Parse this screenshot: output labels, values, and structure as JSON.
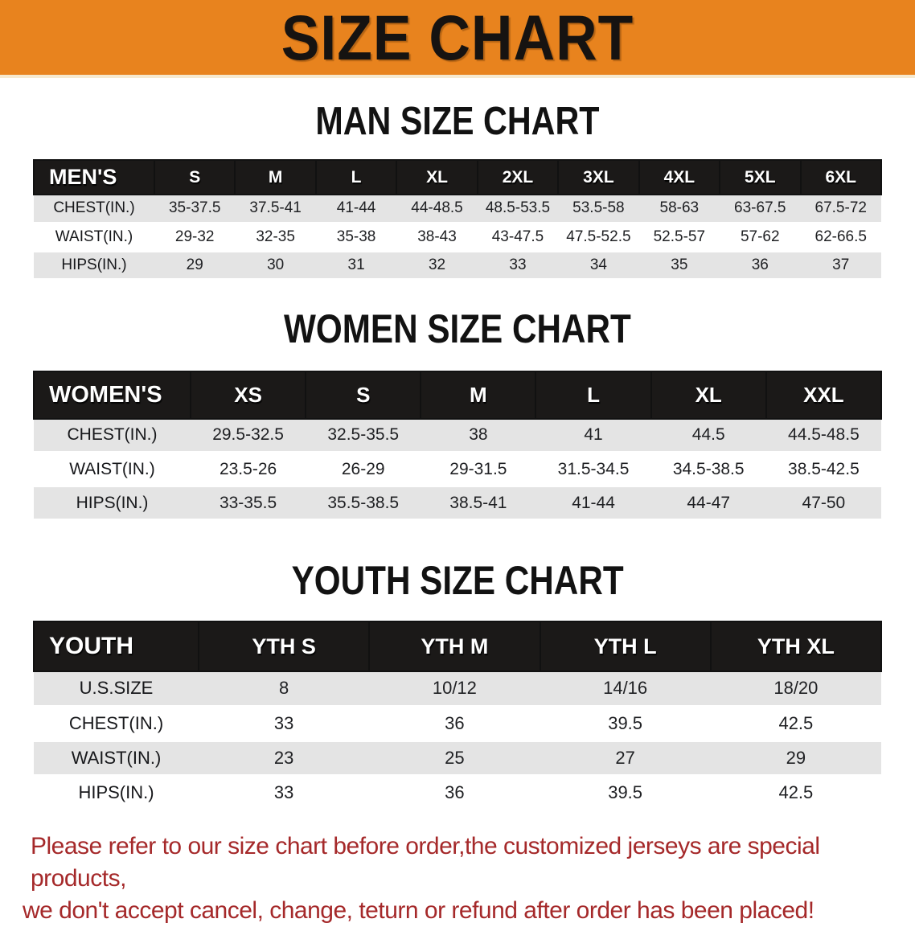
{
  "banner": {
    "title": "SIZE CHART",
    "bg_color": "#e8831e",
    "text_color": "#161311"
  },
  "sections": [
    {
      "heading": "MAN SIZE CHART",
      "table": {
        "header_label": "MEN'S",
        "columns": [
          "S",
          "M",
          "L",
          "XL",
          "2XL",
          "3XL",
          "4XL",
          "5XL",
          "6XL"
        ],
        "rows": [
          {
            "label": "CHEST(IN.)",
            "values": [
              "35-37.5",
              "37.5-41",
              "41-44",
              "44-48.5",
              "48.5-53.5",
              "53.5-58",
              "58-63",
              "63-67.5",
              "67.5-72"
            ]
          },
          {
            "label": "WAIST(IN.)",
            "values": [
              "29-32",
              "32-35",
              "35-38",
              "38-43",
              "43-47.5",
              "47.5-52.5",
              "52.5-57",
              "57-62",
              "62-66.5"
            ]
          },
          {
            "label": "HIPS(IN.)",
            "values": [
              "29",
              "30",
              "31",
              "32",
              "33",
              "34",
              "35",
              "36",
              "37"
            ]
          }
        ]
      }
    },
    {
      "heading": "WOMEN SIZE CHART",
      "table": {
        "header_label": "WOMEN'S",
        "columns": [
          "XS",
          "S",
          "M",
          "L",
          "XL",
          "XXL"
        ],
        "rows": [
          {
            "label": "CHEST(IN.)",
            "values": [
              "29.5-32.5",
              "32.5-35.5",
              "38",
              "41",
              "44.5",
              "44.5-48.5"
            ]
          },
          {
            "label": "WAIST(IN.)",
            "values": [
              "23.5-26",
              "26-29",
              "29-31.5",
              "31.5-34.5",
              "34.5-38.5",
              "38.5-42.5"
            ]
          },
          {
            "label": "HIPS(IN.)",
            "values": [
              "33-35.5",
              "35.5-38.5",
              "38.5-41",
              "41-44",
              "44-47",
              "47-50"
            ]
          }
        ]
      }
    },
    {
      "heading": "YOUTH SIZE CHART",
      "table": {
        "header_label": "YOUTH",
        "columns": [
          "YTH S",
          "YTH M",
          "YTH L",
          "YTH XL"
        ],
        "rows": [
          {
            "label": "U.S.SIZE",
            "values": [
              "8",
              "10/12",
              "14/16",
              "18/20"
            ]
          },
          {
            "label": "CHEST(IN.)",
            "values": [
              "33",
              "36",
              "39.5",
              "42.5"
            ]
          },
          {
            "label": "WAIST(IN.)",
            "values": [
              "23",
              "25",
              "27",
              "29"
            ]
          },
          {
            "label": "HIPS(IN.)",
            "values": [
              "33",
              "36",
              "39.5",
              "42.5"
            ]
          }
        ]
      }
    }
  ],
  "footer": {
    "line1": "Please refer to our size chart before order,the customized jerseys are special products,",
    "line2": "we don't accept cancel, change, teturn or refund after order has been placed!",
    "text_color": "#a5292a"
  },
  "colors": {
    "banner_orange": "#e8831e",
    "table_header_black": "#1b1918",
    "row_stripe_gray": "#e4e4e4",
    "row_stripe_white": "#ffffff",
    "footer_red": "#a5292a"
  }
}
